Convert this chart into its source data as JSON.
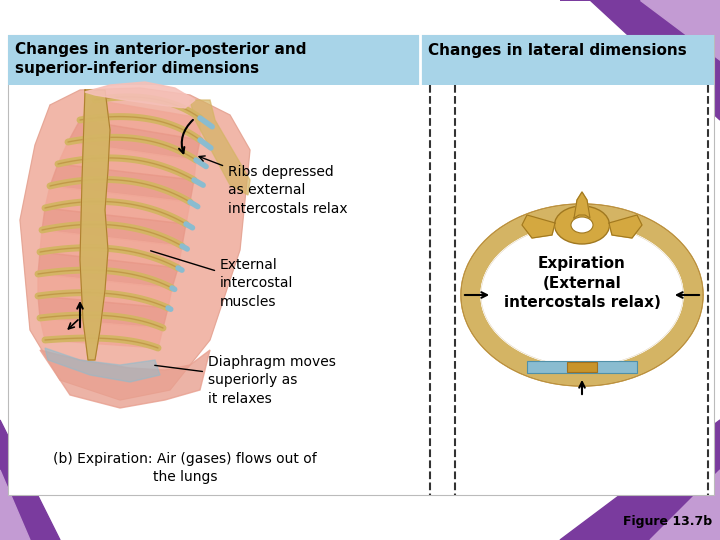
{
  "background_color": "#ffffff",
  "header_bg_color": "#a8d4e8",
  "header_left_text": "Changes in anterior-posterior and\nsuperior-inferior dimensions",
  "header_right_text": "Changes in lateral dimensions",
  "label_ribs": "Ribs depressed\nas external\nintercostals relax",
  "label_external": "External\nintercostal\nmuscles",
  "label_diaphragm": "Diaphragm moves\nsuperiorly as\nit relaxes",
  "label_expiration": "Expiration\n(External\nintercostals relax)",
  "label_bottom": "(b) Expiration: Air (gases) flows out of\nthe lungs",
  "figure_label": "Figure 13.7b",
  "header_font_size": 11,
  "body_font_size": 10,
  "small_font_size": 9,
  "main_bg": "#ffffff",
  "dashed_line_color": "#333333",
  "purple_dark": "#7a3b9e",
  "purple_mid": "#9b59b6",
  "purple_light": "#c39bd3",
  "bone_color": "#d4b464",
  "bone_edge": "#b08030",
  "pink_light": "#f2b0a8",
  "pink_dark": "#e87868",
  "blue_cart": "#8abcd0",
  "blue_cart_edge": "#5090a8"
}
